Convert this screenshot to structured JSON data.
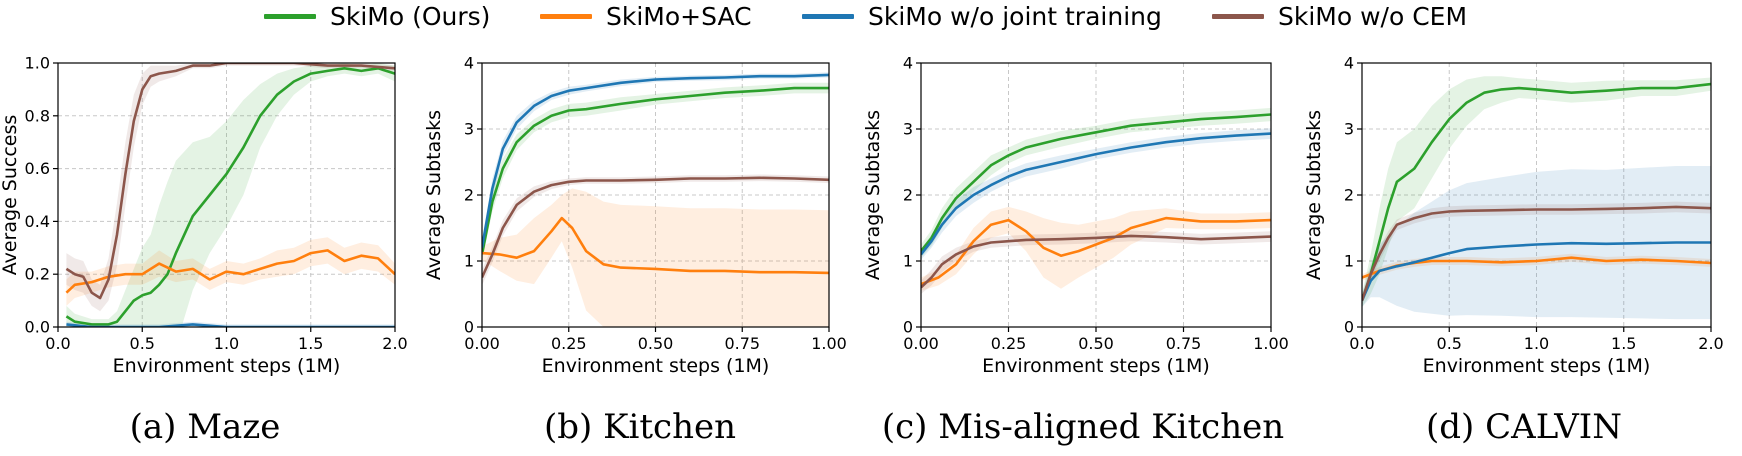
{
  "legend": {
    "items": [
      {
        "label": "SkiMo (Ours)",
        "color": "#2ca02c"
      },
      {
        "label": "SkiMo+SAC",
        "color": "#ff7f0e"
      },
      {
        "label": "SkiMo w/o joint training",
        "color": "#1f77b4"
      },
      {
        "label": "SkiMo w/o CEM",
        "color": "#8c564b"
      }
    ]
  },
  "chart_data": [
    {
      "type": "line",
      "caption": "(a) Maze",
      "xlabel": "Environment steps (1M)",
      "ylabel": "Average Success",
      "xlim": [
        0,
        2.0
      ],
      "ylim": [
        0,
        1.0
      ],
      "xticks": [
        0.0,
        0.5,
        1.0,
        1.5,
        2.0
      ],
      "xtick_labels": [
        "0.0",
        "0.5",
        "1.0",
        "1.5",
        "2.0"
      ],
      "yticks": [
        0.0,
        0.2,
        0.4,
        0.6,
        0.8,
        1.0
      ],
      "ytick_labels": [
        "0.0",
        "0.2",
        "0.4",
        "0.6",
        "0.8",
        "1.0"
      ],
      "grid": true,
      "series": [
        {
          "name": "SkiMo (Ours)",
          "color": "#2ca02c",
          "x": [
            0.05,
            0.1,
            0.2,
            0.3,
            0.35,
            0.4,
            0.45,
            0.5,
            0.55,
            0.6,
            0.65,
            0.7,
            0.8,
            0.9,
            1.0,
            1.1,
            1.2,
            1.3,
            1.4,
            1.5,
            1.6,
            1.7,
            1.8,
            1.9,
            2.0
          ],
          "y": [
            0.04,
            0.02,
            0.01,
            0.01,
            0.02,
            0.06,
            0.1,
            0.12,
            0.13,
            0.16,
            0.2,
            0.28,
            0.42,
            0.5,
            0.58,
            0.68,
            0.8,
            0.88,
            0.93,
            0.96,
            0.97,
            0.98,
            0.97,
            0.98,
            0.96
          ],
          "band": [
            0.04,
            0.03,
            0.02,
            0.02,
            0.04,
            0.08,
            0.12,
            0.18,
            0.22,
            0.3,
            0.35,
            0.35,
            0.28,
            0.22,
            0.2,
            0.18,
            0.12,
            0.08,
            0.05,
            0.03,
            0.02,
            0.02,
            0.02,
            0.02,
            0.03
          ]
        },
        {
          "name": "SkiMo+SAC",
          "color": "#ff7f0e",
          "x": [
            0.05,
            0.1,
            0.2,
            0.3,
            0.4,
            0.5,
            0.6,
            0.7,
            0.8,
            0.9,
            1.0,
            1.1,
            1.2,
            1.3,
            1.4,
            1.5,
            1.6,
            1.7,
            1.8,
            1.9,
            2.0
          ],
          "y": [
            0.13,
            0.16,
            0.17,
            0.19,
            0.2,
            0.2,
            0.24,
            0.21,
            0.22,
            0.18,
            0.21,
            0.2,
            0.22,
            0.24,
            0.25,
            0.28,
            0.29,
            0.25,
            0.27,
            0.26,
            0.2
          ],
          "band": [
            0.05,
            0.05,
            0.04,
            0.04,
            0.04,
            0.04,
            0.05,
            0.04,
            0.04,
            0.04,
            0.04,
            0.04,
            0.04,
            0.05,
            0.05,
            0.05,
            0.05,
            0.05,
            0.05,
            0.05,
            0.04
          ]
        },
        {
          "name": "SkiMo w/o joint training",
          "color": "#1f77b4",
          "x": [
            0.05,
            0.2,
            0.4,
            0.6,
            0.8,
            1.0,
            1.2,
            1.4,
            1.6,
            1.8,
            2.0
          ],
          "y": [
            0.01,
            0.0,
            0.0,
            0.0,
            0.01,
            0.0,
            0.0,
            0.0,
            0.0,
            0.0,
            0.0
          ],
          "band": [
            0.01,
            0.01,
            0.01,
            0.01,
            0.01,
            0.01,
            0.01,
            0.01,
            0.01,
            0.01,
            0.01
          ]
        },
        {
          "name": "SkiMo w/o CEM",
          "color": "#8c564b",
          "x": [
            0.05,
            0.1,
            0.15,
            0.2,
            0.25,
            0.3,
            0.35,
            0.4,
            0.45,
            0.5,
            0.55,
            0.6,
            0.7,
            0.8,
            0.9,
            1.0,
            1.2,
            1.4,
            1.6,
            1.8,
            2.0
          ],
          "y": [
            0.22,
            0.2,
            0.19,
            0.13,
            0.11,
            0.18,
            0.35,
            0.58,
            0.78,
            0.9,
            0.95,
            0.96,
            0.97,
            0.99,
            0.99,
            1.0,
            1.0,
            1.0,
            0.99,
            0.99,
            0.98
          ],
          "band": [
            0.06,
            0.06,
            0.06,
            0.05,
            0.05,
            0.08,
            0.12,
            0.12,
            0.1,
            0.06,
            0.04,
            0.03,
            0.02,
            0.01,
            0.01,
            0.01,
            0.01,
            0.01,
            0.01,
            0.01,
            0.01
          ]
        }
      ]
    },
    {
      "type": "line",
      "caption": "(b) Kitchen",
      "xlabel": "Environment steps (1M)",
      "ylabel": "Average Subtasks",
      "xlim": [
        0,
        1.0
      ],
      "ylim": [
        0,
        4
      ],
      "xticks": [
        0.0,
        0.25,
        0.5,
        0.75,
        1.0
      ],
      "xtick_labels": [
        "0.00",
        "0.25",
        "0.50",
        "0.75",
        "1.00"
      ],
      "yticks": [
        0,
        1,
        2,
        3,
        4
      ],
      "ytick_labels": [
        "0",
        "1",
        "2",
        "3",
        "4"
      ],
      "grid": true,
      "series": [
        {
          "name": "SkiMo (Ours)",
          "color": "#2ca02c",
          "x": [
            0.0,
            0.03,
            0.06,
            0.1,
            0.15,
            0.2,
            0.25,
            0.3,
            0.4,
            0.5,
            0.6,
            0.7,
            0.8,
            0.9,
            1.0
          ],
          "y": [
            1.1,
            1.9,
            2.4,
            2.8,
            3.05,
            3.2,
            3.28,
            3.3,
            3.38,
            3.45,
            3.5,
            3.55,
            3.58,
            3.62,
            3.62
          ],
          "band": [
            0.1,
            0.15,
            0.15,
            0.12,
            0.1,
            0.1,
            0.1,
            0.1,
            0.1,
            0.08,
            0.08,
            0.08,
            0.08,
            0.08,
            0.08
          ]
        },
        {
          "name": "SkiMo+SAC",
          "color": "#ff7f0e",
          "x": [
            0.0,
            0.05,
            0.1,
            0.15,
            0.2,
            0.23,
            0.26,
            0.3,
            0.35,
            0.4,
            0.5,
            0.6,
            0.7,
            0.8,
            0.9,
            1.0
          ],
          "y": [
            1.12,
            1.1,
            1.05,
            1.15,
            1.45,
            1.65,
            1.5,
            1.15,
            0.95,
            0.9,
            0.88,
            0.85,
            0.85,
            0.83,
            0.83,
            0.82
          ],
          "band": [
            0.1,
            0.25,
            0.35,
            0.5,
            0.4,
            0.35,
            0.6,
            0.9,
            0.95,
            0.95,
            0.95,
            0.95,
            0.95,
            0.95,
            0.95,
            0.95
          ]
        },
        {
          "name": "SkiMo w/o joint training",
          "color": "#1f77b4",
          "x": [
            0.0,
            0.03,
            0.06,
            0.1,
            0.15,
            0.2,
            0.25,
            0.3,
            0.4,
            0.5,
            0.6,
            0.7,
            0.8,
            0.9,
            1.0
          ],
          "y": [
            1.2,
            2.1,
            2.7,
            3.1,
            3.35,
            3.5,
            3.58,
            3.62,
            3.7,
            3.75,
            3.77,
            3.78,
            3.8,
            3.8,
            3.82
          ],
          "band": [
            0.12,
            0.15,
            0.12,
            0.1,
            0.08,
            0.06,
            0.06,
            0.05,
            0.05,
            0.04,
            0.04,
            0.04,
            0.04,
            0.04,
            0.04
          ]
        },
        {
          "name": "SkiMo w/o CEM",
          "color": "#8c564b",
          "x": [
            0.0,
            0.03,
            0.06,
            0.1,
            0.15,
            0.2,
            0.25,
            0.3,
            0.4,
            0.5,
            0.6,
            0.7,
            0.8,
            0.9,
            1.0
          ],
          "y": [
            0.75,
            1.1,
            1.5,
            1.85,
            2.05,
            2.15,
            2.2,
            2.22,
            2.22,
            2.23,
            2.25,
            2.25,
            2.26,
            2.25,
            2.23
          ],
          "band": [
            0.12,
            0.12,
            0.12,
            0.1,
            0.08,
            0.06,
            0.05,
            0.05,
            0.05,
            0.05,
            0.05,
            0.05,
            0.05,
            0.05,
            0.05
          ]
        }
      ]
    },
    {
      "type": "line",
      "caption": "(c) Mis-aligned Kitchen",
      "xlabel": "Environment steps (1M)",
      "ylabel": "Average Subtasks",
      "xlim": [
        0,
        1.0
      ],
      "ylim": [
        0,
        4
      ],
      "xticks": [
        0.0,
        0.25,
        0.5,
        0.75,
        1.0
      ],
      "xtick_labels": [
        "0.00",
        "0.25",
        "0.50",
        "0.75",
        "1.00"
      ],
      "yticks": [
        0,
        1,
        2,
        3,
        4
      ],
      "ytick_labels": [
        "0",
        "1",
        "2",
        "3",
        "4"
      ],
      "grid": true,
      "series": [
        {
          "name": "SkiMo (Ours)",
          "color": "#2ca02c",
          "x": [
            0.0,
            0.03,
            0.06,
            0.1,
            0.15,
            0.2,
            0.25,
            0.3,
            0.4,
            0.5,
            0.6,
            0.7,
            0.8,
            0.9,
            1.0
          ],
          "y": [
            1.15,
            1.35,
            1.65,
            1.95,
            2.2,
            2.45,
            2.6,
            2.72,
            2.85,
            2.95,
            3.05,
            3.1,
            3.15,
            3.18,
            3.22
          ],
          "band": [
            0.1,
            0.12,
            0.15,
            0.15,
            0.15,
            0.15,
            0.12,
            0.12,
            0.12,
            0.1,
            0.1,
            0.1,
            0.1,
            0.1,
            0.1
          ]
        },
        {
          "name": "SkiMo+SAC",
          "color": "#ff7f0e",
          "x": [
            0.0,
            0.05,
            0.1,
            0.15,
            0.2,
            0.25,
            0.3,
            0.35,
            0.4,
            0.45,
            0.5,
            0.55,
            0.6,
            0.7,
            0.8,
            0.9,
            1.0
          ],
          "y": [
            0.65,
            0.75,
            0.95,
            1.3,
            1.55,
            1.62,
            1.45,
            1.2,
            1.08,
            1.15,
            1.25,
            1.35,
            1.5,
            1.65,
            1.6,
            1.6,
            1.62
          ],
          "band": [
            0.1,
            0.12,
            0.15,
            0.2,
            0.2,
            0.2,
            0.3,
            0.45,
            0.5,
            0.4,
            0.35,
            0.3,
            0.25,
            0.15,
            0.12,
            0.12,
            0.12
          ]
        },
        {
          "name": "SkiMo w/o joint training",
          "color": "#1f77b4",
          "x": [
            0.0,
            0.03,
            0.06,
            0.1,
            0.15,
            0.2,
            0.25,
            0.3,
            0.4,
            0.5,
            0.6,
            0.7,
            0.8,
            0.9,
            1.0
          ],
          "y": [
            1.1,
            1.3,
            1.55,
            1.8,
            2.0,
            2.15,
            2.28,
            2.38,
            2.5,
            2.62,
            2.72,
            2.8,
            2.86,
            2.9,
            2.93
          ],
          "band": [
            0.08,
            0.1,
            0.12,
            0.12,
            0.12,
            0.1,
            0.1,
            0.1,
            0.1,
            0.08,
            0.08,
            0.08,
            0.08,
            0.08,
            0.08
          ]
        },
        {
          "name": "SkiMo w/o CEM",
          "color": "#8c564b",
          "x": [
            0.0,
            0.03,
            0.06,
            0.1,
            0.15,
            0.2,
            0.25,
            0.3,
            0.4,
            0.5,
            0.6,
            0.7,
            0.8,
            0.9,
            1.0
          ],
          "y": [
            0.6,
            0.75,
            0.95,
            1.1,
            1.22,
            1.28,
            1.3,
            1.32,
            1.33,
            1.35,
            1.38,
            1.36,
            1.33,
            1.35,
            1.37
          ],
          "band": [
            0.1,
            0.12,
            0.12,
            0.1,
            0.08,
            0.08,
            0.08,
            0.08,
            0.08,
            0.08,
            0.08,
            0.08,
            0.08,
            0.08,
            0.08
          ]
        }
      ]
    },
    {
      "type": "line",
      "caption": "(d) CALVIN",
      "xlabel": "Environment steps (1M)",
      "ylabel": "Average Subtasks",
      "xlim": [
        0,
        2.0
      ],
      "ylim": [
        0,
        4
      ],
      "xticks": [
        0.0,
        0.5,
        1.0,
        1.5,
        2.0
      ],
      "xtick_labels": [
        "0.0",
        "0.5",
        "1.0",
        "1.5",
        "2.0"
      ],
      "yticks": [
        0,
        1,
        2,
        3,
        4
      ],
      "ytick_labels": [
        "0",
        "1",
        "2",
        "3",
        "4"
      ],
      "grid": true,
      "series": [
        {
          "name": "SkiMo (Ours)",
          "color": "#2ca02c",
          "x": [
            0.0,
            0.05,
            0.1,
            0.15,
            0.2,
            0.3,
            0.4,
            0.5,
            0.6,
            0.7,
            0.8,
            0.9,
            1.0,
            1.2,
            1.4,
            1.6,
            1.8,
            2.0
          ],
          "y": [
            0.4,
            0.8,
            1.3,
            1.8,
            2.2,
            2.4,
            2.8,
            3.15,
            3.4,
            3.55,
            3.6,
            3.62,
            3.6,
            3.55,
            3.58,
            3.62,
            3.62,
            3.68
          ],
          "band": [
            0.1,
            0.3,
            0.5,
            0.6,
            0.6,
            0.6,
            0.55,
            0.45,
            0.35,
            0.25,
            0.2,
            0.15,
            0.15,
            0.15,
            0.15,
            0.12,
            0.12,
            0.1
          ]
        },
        {
          "name": "SkiMo+SAC",
          "color": "#ff7f0e",
          "x": [
            0.0,
            0.1,
            0.2,
            0.3,
            0.4,
            0.5,
            0.6,
            0.8,
            1.0,
            1.2,
            1.4,
            1.6,
            1.8,
            2.0
          ],
          "y": [
            0.75,
            0.85,
            0.93,
            0.97,
            1.0,
            1.0,
            1.0,
            0.98,
            1.0,
            1.05,
            1.0,
            1.02,
            1.0,
            0.97
          ],
          "band": [
            0.05,
            0.06,
            0.06,
            0.06,
            0.06,
            0.06,
            0.06,
            0.06,
            0.06,
            0.06,
            0.06,
            0.06,
            0.06,
            0.06
          ]
        },
        {
          "name": "SkiMo w/o joint training",
          "color": "#1f77b4",
          "x": [
            0.0,
            0.05,
            0.1,
            0.2,
            0.3,
            0.4,
            0.5,
            0.6,
            0.8,
            1.0,
            1.2,
            1.4,
            1.6,
            1.8,
            2.0
          ],
          "y": [
            0.4,
            0.7,
            0.85,
            0.92,
            0.98,
            1.05,
            1.12,
            1.18,
            1.22,
            1.25,
            1.27,
            1.26,
            1.27,
            1.28,
            1.28
          ],
          "band": [
            0.1,
            0.25,
            0.4,
            0.6,
            0.75,
            0.85,
            0.95,
            1.0,
            1.05,
            1.1,
            1.12,
            1.12,
            1.14,
            1.16,
            1.16
          ]
        },
        {
          "name": "SkiMo w/o CEM",
          "color": "#8c564b",
          "x": [
            0.0,
            0.05,
            0.1,
            0.15,
            0.2,
            0.3,
            0.4,
            0.5,
            0.6,
            0.8,
            1.0,
            1.2,
            1.4,
            1.6,
            1.8,
            2.0
          ],
          "y": [
            0.4,
            0.8,
            1.1,
            1.35,
            1.55,
            1.65,
            1.72,
            1.75,
            1.76,
            1.77,
            1.78,
            1.78,
            1.79,
            1.8,
            1.82,
            1.8
          ],
          "band": [
            0.08,
            0.1,
            0.1,
            0.1,
            0.08,
            0.08,
            0.08,
            0.08,
            0.08,
            0.08,
            0.08,
            0.08,
            0.08,
            0.08,
            0.08,
            0.08
          ]
        }
      ]
    }
  ]
}
